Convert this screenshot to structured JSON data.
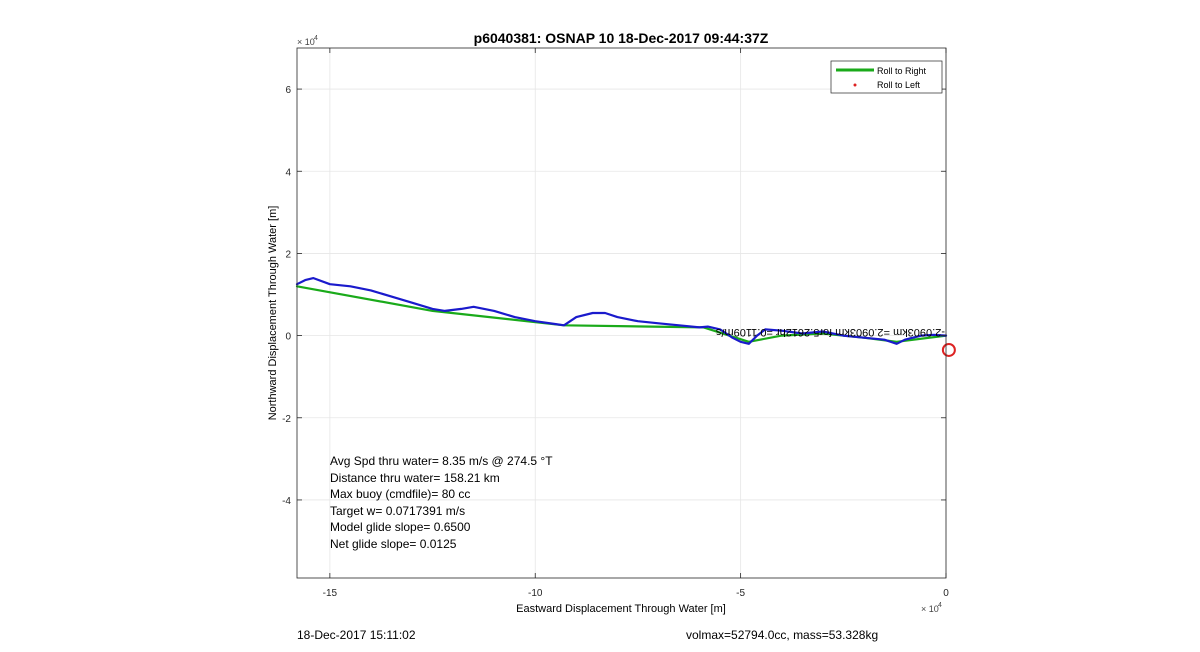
{
  "chart_data": {
    "type": "line",
    "title": "p6040381: OSNAP 10 18-Dec-2017 09:44:37Z",
    "xlabel": "Eastward Displacement Through Water [m]",
    "ylabel": "Northward Displacement Through Water [m]",
    "x_exponent_label": "× 10",
    "x_exponent_power": "4",
    "y_exponent_label": "× 10",
    "y_exponent_power": "4",
    "xlim": [
      -15.8,
      0
    ],
    "ylim": [
      -5.9,
      7
    ],
    "x_ticks": [
      -15,
      -10,
      -5,
      0
    ],
    "x_tick_labels": [
      "-15",
      "-10",
      "-5",
      "0"
    ],
    "y_ticks": [
      -4,
      -2,
      0,
      2,
      4,
      6
    ],
    "y_tick_labels": [
      "-4",
      "-2",
      "0",
      "2",
      "4",
      "6"
    ],
    "grid": true,
    "legend_position": "top-right",
    "legend": [
      {
        "label": "Roll to Right",
        "color": "#1aaa1a",
        "marker": "line"
      },
      {
        "label": "Roll to Left",
        "color": "#dd2222",
        "marker": "dot"
      }
    ],
    "series": [
      {
        "name": "Roll to Right",
        "color": "#1aaa1a",
        "x": [
          -15.8,
          -12.5,
          -9.3,
          -5.9,
          -4.8,
          -4.0,
          -3.0,
          -2.0,
          -1.2,
          0.0
        ],
        "y": [
          1.2,
          0.6,
          0.25,
          0.2,
          -0.15,
          0.0,
          0.05,
          -0.05,
          -0.15,
          0.0
        ]
      },
      {
        "color": "#1a1acc",
        "x": [
          -15.8,
          -15.6,
          -15.4,
          -15.0,
          -14.5,
          -14.0,
          -13.5,
          -13.0,
          -12.5,
          -12.2,
          -11.8,
          -11.5,
          -11.0,
          -10.5,
          -10.0,
          -9.5,
          -9.3,
          -9.0,
          -8.6,
          -8.3,
          -8.0,
          -7.5,
          -7.0,
          -6.5,
          -6.0,
          -5.8,
          -5.5,
          -5.2,
          -5.0,
          -4.8,
          -4.6,
          -4.4,
          -4.0,
          -3.5,
          -3.0,
          -2.5,
          -2.0,
          -1.5,
          -1.2,
          -1.0,
          -0.6,
          -0.3,
          0.0
        ],
        "y": [
          1.25,
          1.35,
          1.4,
          1.25,
          1.2,
          1.1,
          0.95,
          0.8,
          0.65,
          0.6,
          0.65,
          0.7,
          0.6,
          0.45,
          0.35,
          0.28,
          0.25,
          0.45,
          0.55,
          0.55,
          0.45,
          0.35,
          0.3,
          0.25,
          0.2,
          0.22,
          0.15,
          -0.05,
          -0.15,
          -0.2,
          0.0,
          0.15,
          0.12,
          0.05,
          0.1,
          0.0,
          -0.05,
          -0.1,
          -0.2,
          -0.1,
          0.0,
          0.02,
          0.0
        ]
      }
    ],
    "markers": [
      {
        "x": 0.07,
        "y": -0.35,
        "shape": "circle",
        "color": "#dd2222"
      }
    ],
    "overlay_text": "-2.0903km =2.0903km for5.2612hr =0.1109m/s",
    "stats": [
      "Avg Spd thru water=  8.35 m/s @ 274.5 °T",
      "Distance thru water= 158.21 km",
      "Max buoy (cmdfile)= 80 cc",
      "Target w= 0.0717391 m/s",
      "Model glide slope= 0.6500",
      "Net glide slope= 0.0125"
    ]
  },
  "footer": {
    "timestamp": "18-Dec-2017 15:11:02",
    "mass_info": "volmax=52794.0cc, mass=53.328kg"
  }
}
